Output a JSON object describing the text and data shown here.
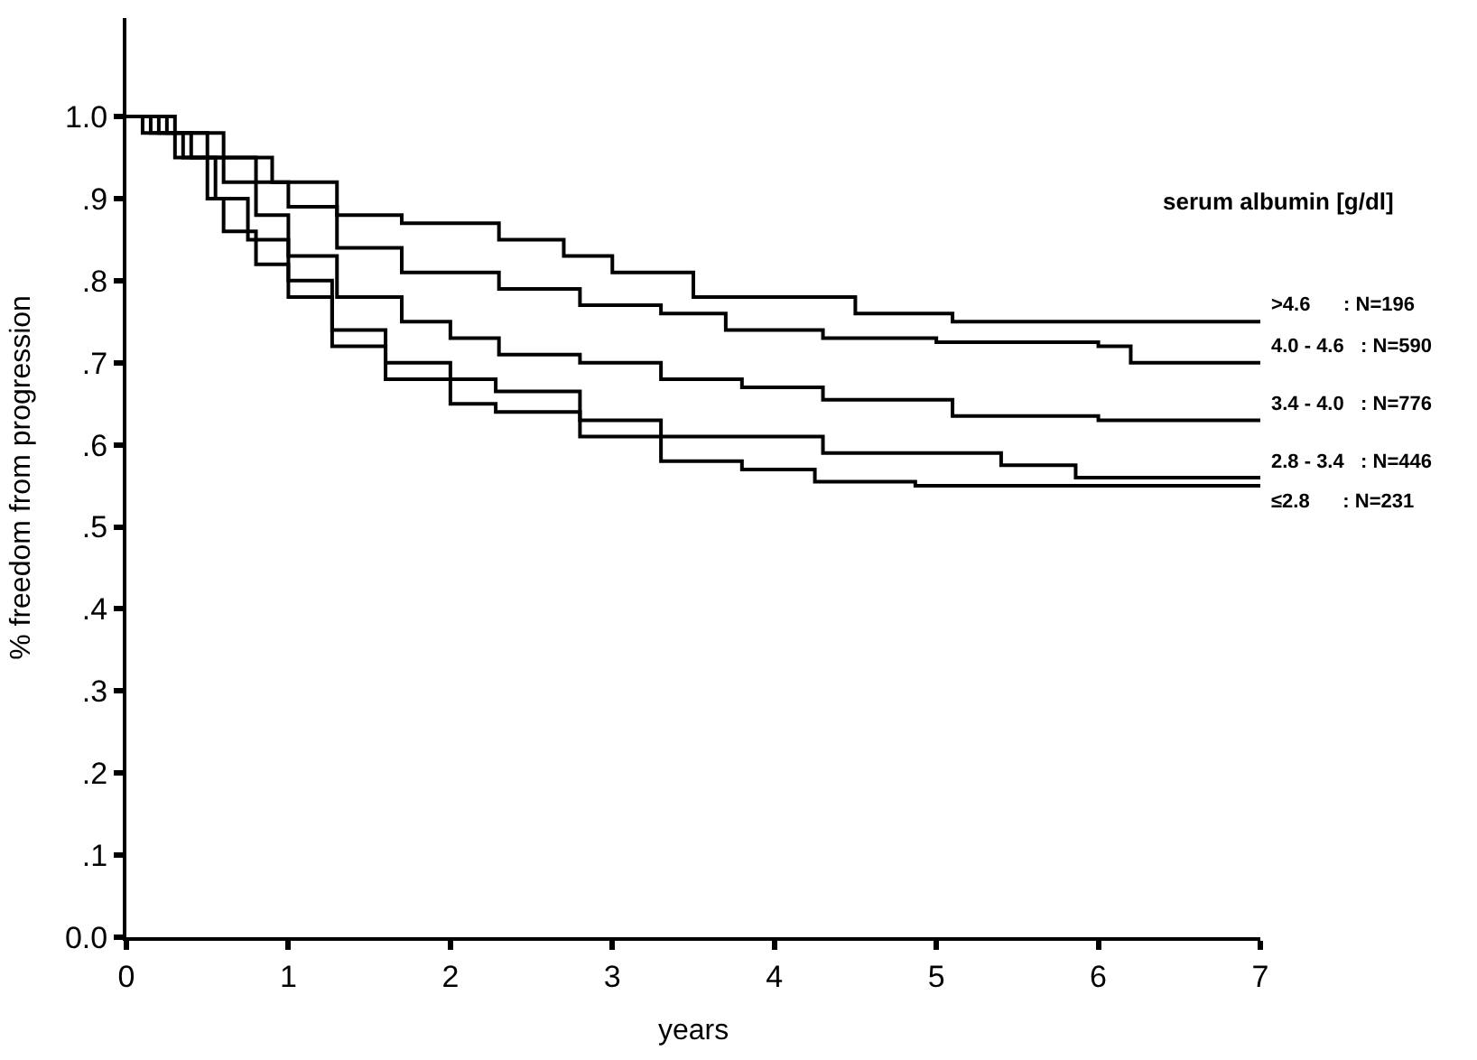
{
  "chart_data": {
    "type": "step",
    "xlabel": "years",
    "ylabel": "% freedom from progression",
    "annotations": [
      "serum albumin [g/dl]"
    ],
    "xlim": [
      0,
      7
    ],
    "ylim": [
      0,
      1.12
    ],
    "xticks": [
      0,
      1,
      2,
      3,
      4,
      5,
      6,
      7
    ],
    "yticks": [
      {
        "value": 0,
        "label": "0.0"
      },
      {
        "value": 0.1,
        "label": ".1"
      },
      {
        "value": 0.2,
        "label": ".2"
      },
      {
        "value": 0.3,
        "label": ".3"
      },
      {
        "value": 0.4,
        "label": ".4"
      },
      {
        "value": 0.5,
        "label": ".5"
      },
      {
        "value": 0.6,
        "label": ".6"
      },
      {
        "value": 0.7,
        "label": ".7"
      },
      {
        "value": 0.8,
        "label": ".8"
      },
      {
        "value": 0.9,
        "label": ".9"
      },
      {
        "value": 1.0,
        "label": "1.0"
      }
    ],
    "marker": "none",
    "line_style": "solid",
    "series": [
      {
        "name": ">4.6      : N=196",
        "color": "#000000",
        "x": [
          0,
          0.3,
          0.6,
          0.9,
          1.3,
          1.7,
          2.3,
          2.7,
          3.0,
          3.5,
          4.5,
          5.1,
          7
        ],
        "values": [
          1.0,
          0.98,
          0.95,
          0.92,
          0.88,
          0.87,
          0.85,
          0.83,
          0.81,
          0.78,
          0.76,
          0.75,
          0.75
        ]
      },
      {
        "name": "4.0 - 4.6   : N=590",
        "color": "#000000",
        "x": [
          0,
          0.25,
          0.5,
          0.8,
          1.0,
          1.3,
          1.7,
          2.3,
          2.8,
          3.3,
          3.7,
          4.3,
          5.0,
          6.0,
          6.2,
          7
        ],
        "values": [
          1.0,
          0.98,
          0.95,
          0.92,
          0.89,
          0.84,
          0.81,
          0.79,
          0.77,
          0.76,
          0.74,
          0.73,
          0.725,
          0.72,
          0.7,
          0.7
        ]
      },
      {
        "name": "3.4 - 4.0   : N=776",
        "color": "#000000",
        "x": [
          0,
          0.2,
          0.4,
          0.6,
          0.8,
          1.0,
          1.3,
          1.7,
          2.0,
          2.3,
          2.8,
          3.3,
          3.8,
          4.3,
          5.1,
          6.0,
          7
        ],
        "values": [
          1.0,
          0.98,
          0.95,
          0.92,
          0.88,
          0.83,
          0.78,
          0.75,
          0.73,
          0.71,
          0.7,
          0.68,
          0.67,
          0.655,
          0.635,
          0.63,
          0.63
        ]
      },
      {
        "name": "2.8 - 3.4   : N=446",
        "color": "#000000",
        "x": [
          0,
          0.15,
          0.35,
          0.55,
          0.75,
          1.0,
          1.27,
          1.6,
          2.0,
          2.28,
          2.8,
          3.3,
          4.3,
          5.4,
          5.86,
          7
        ],
        "values": [
          1.0,
          0.98,
          0.95,
          0.9,
          0.85,
          0.8,
          0.74,
          0.7,
          0.68,
          0.665,
          0.63,
          0.61,
          0.59,
          0.575,
          0.56,
          0.56
        ]
      },
      {
        "name": "≤2.8      : N=231",
        "color": "#000000",
        "x": [
          0,
          0.1,
          0.3,
          0.5,
          0.6,
          0.8,
          1.0,
          1.27,
          1.6,
          2.0,
          2.28,
          2.8,
          3.3,
          3.8,
          4.25,
          4.87,
          7
        ],
        "values": [
          1.0,
          0.98,
          0.95,
          0.9,
          0.86,
          0.82,
          0.78,
          0.72,
          0.68,
          0.65,
          0.64,
          0.61,
          0.58,
          0.57,
          0.555,
          0.55,
          0.55
        ]
      }
    ]
  }
}
